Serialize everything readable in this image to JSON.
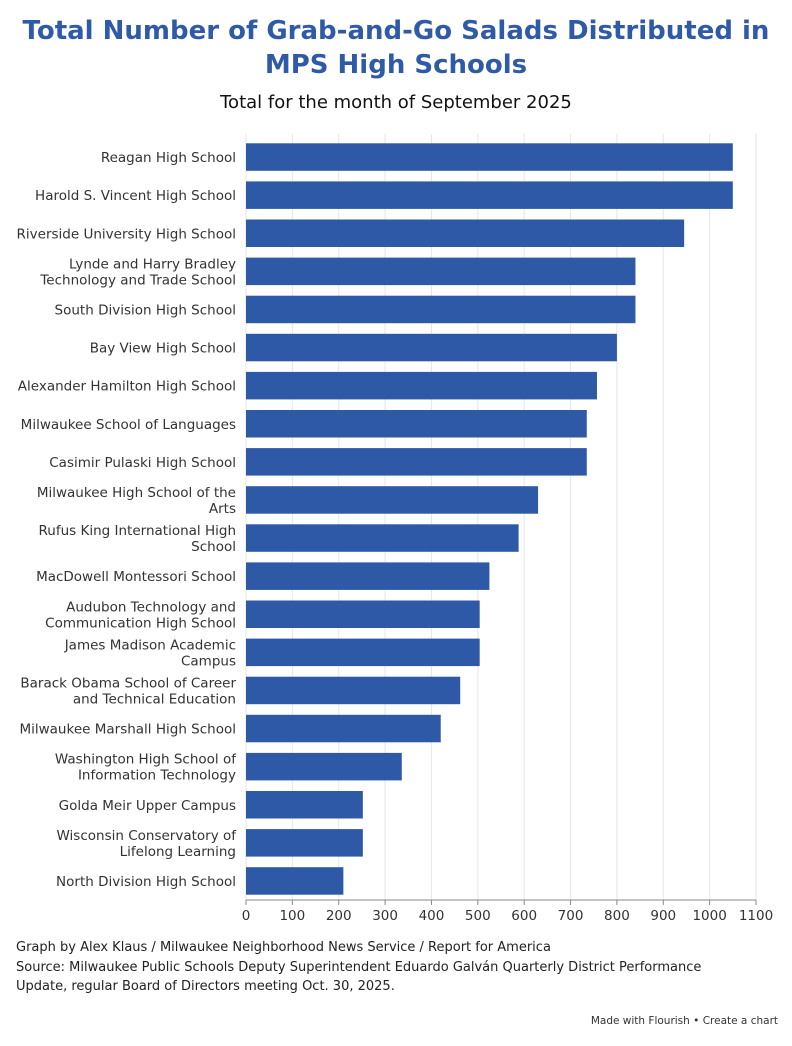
{
  "chart_data": {
    "type": "bar",
    "orientation": "horizontal",
    "title": "Total Number of Grab-and-Go Salads Distributed in MPS High Schools",
    "subtitle": "Total for the month of September 2025",
    "categories": [
      "Reagan High School",
      "Harold S. Vincent High School",
      "Riverside University High School",
      "Lynde and Harry Bradley Technology and Trade School",
      "South Division High School",
      "Bay View High School",
      "Alexander Hamilton High School",
      "Milwaukee School of Languages",
      "Casimir Pulaski High School",
      "Milwaukee High School of the Arts",
      "Rufus King International High School",
      "MacDowell Montessori School",
      "Audubon Technology and Communication High School",
      "James Madison Academic Campus",
      "Barack Obama School of Career and Technical Education",
      "Milwaukee Marshall High School",
      "Washington High School of Information Technology",
      "Golda Meir Upper Campus",
      "Wisconsin Conservatory of Lifelong Learning",
      "North Division High School"
    ],
    "category_lines": [
      [
        "Reagan High School"
      ],
      [
        "Harold S. Vincent High School"
      ],
      [
        "Riverside University High School"
      ],
      [
        "Lynde and Harry Bradley",
        "Technology and Trade School"
      ],
      [
        "South Division High School"
      ],
      [
        "Bay View High School"
      ],
      [
        "Alexander Hamilton High School"
      ],
      [
        "Milwaukee School of Languages"
      ],
      [
        "Casimir Pulaski High School"
      ],
      [
        "Milwaukee High School of the",
        "Arts"
      ],
      [
        "Rufus King International High",
        "School"
      ],
      [
        "MacDowell Montessori School"
      ],
      [
        "Audubon Technology and",
        "Communication High School"
      ],
      [
        "James Madison Academic",
        "Campus"
      ],
      [
        "Barack Obama School of Career",
        "and Technical Education"
      ],
      [
        "Milwaukee Marshall High School"
      ],
      [
        "Washington High School of",
        "Information Technology"
      ],
      [
        "Golda Meir Upper Campus"
      ],
      [
        "Wisconsin Conservatory of",
        "Lifelong Learning"
      ],
      [
        "North Division High School"
      ]
    ],
    "values": [
      1050,
      1050,
      945,
      840,
      840,
      800,
      757,
      735,
      735,
      630,
      588,
      525,
      504,
      504,
      462,
      420,
      336,
      252,
      252,
      210
    ],
    "xlim": [
      0,
      1100
    ],
    "xticks": [
      "0",
      "100",
      "200",
      "300",
      "400",
      "500",
      "600",
      "700",
      "800",
      "900",
      "1000",
      "1100"
    ],
    "grid": true,
    "bar_color": "#2e59a7",
    "xlabel": "",
    "ylabel": ""
  },
  "footer": {
    "line1": "Graph by Alex Klaus / Milwaukee Neighborhood News Service / Report for America",
    "line2": "Source: Milwaukee Public Schools Deputy Superintendent Eduardo Galván Quarterly District Performance",
    "line3": "Update, regular Board of Directors meeting Oct. 30, 2025."
  },
  "credit": {
    "made_with": "Made with Flourish",
    "separator": "•",
    "create": "Create a chart"
  }
}
